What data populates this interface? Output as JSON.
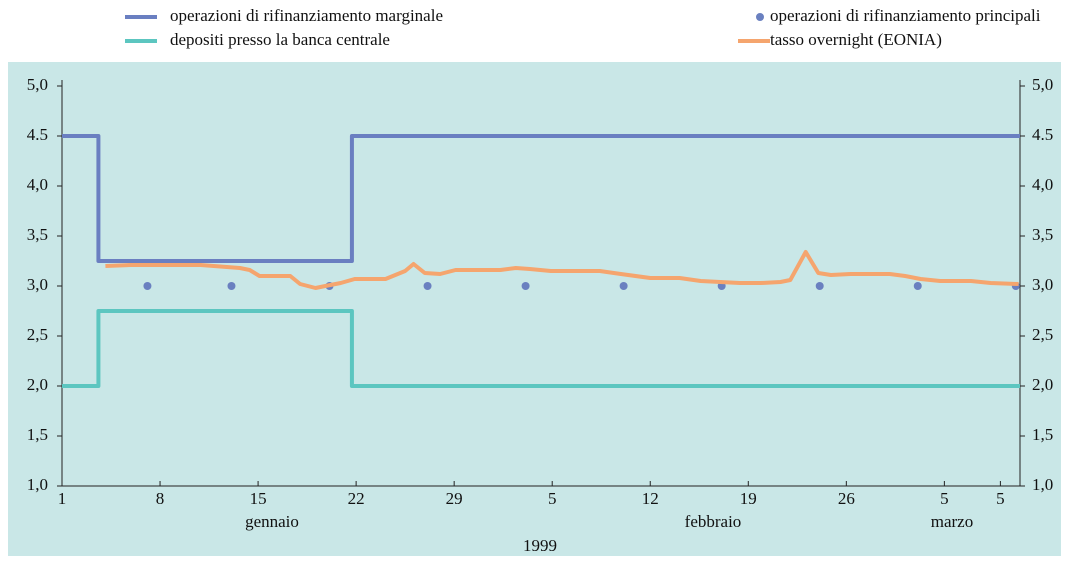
{
  "chart_data": {
    "type": "line",
    "xlim": [
      0,
      68.4
    ],
    "xticks": [
      {
        "value": 0,
        "label": "1"
      },
      {
        "value": 7,
        "label": "8"
      },
      {
        "value": 14,
        "label": "15"
      },
      {
        "value": 21,
        "label": "22"
      },
      {
        "value": 28,
        "label": "29"
      },
      {
        "value": 35,
        "label": "5"
      },
      {
        "value": 42,
        "label": "12"
      },
      {
        "value": 49,
        "label": "19"
      },
      {
        "value": 56,
        "label": "26"
      },
      {
        "value": 63,
        "label": "5"
      },
      {
        "value": 67,
        "label": "5"
      }
    ],
    "months": [
      "gennaio",
      "febbraio",
      "marzo"
    ],
    "year": "1999",
    "ylim": [
      1,
      5
    ],
    "yticks": [
      {
        "value": 1,
        "label": "1,0"
      },
      {
        "value": 1.5,
        "label": "1,5"
      },
      {
        "value": 2,
        "label": "2,0"
      },
      {
        "value": 2.5,
        "label": "2,5"
      },
      {
        "value": 3,
        "label": "3,0"
      },
      {
        "value": 3.5,
        "label": "3,5"
      },
      {
        "value": 4,
        "label": "4,0"
      },
      {
        "value": 4.5,
        "label": "4.5"
      },
      {
        "value": 5,
        "label": "5,0"
      }
    ],
    "series": [
      {
        "name": "operazioni di rifinanziamento marginale",
        "color": "#6a7fc1",
        "type": "line",
        "x": [
          0,
          2.6,
          2.6,
          20.7,
          20.7,
          68.4
        ],
        "values": [
          4.5,
          4.5,
          3.25,
          3.25,
          4.5,
          4.5
        ]
      },
      {
        "name": "operazioni di rifinanziamento principali",
        "color": "#6a80c0",
        "type": "scatter",
        "x": [
          6.1,
          12.1,
          19.1,
          26.1,
          33.1,
          40.1,
          47.1,
          54.1,
          61.1,
          68.1
        ],
        "values": [
          3,
          3,
          3,
          3,
          3,
          3,
          3,
          3,
          3,
          3
        ]
      },
      {
        "name": "depositi presso la banca centrale",
        "color": "#5cc6c0",
        "type": "line",
        "x": [
          0,
          2.6,
          2.6,
          20.7,
          20.7,
          68.4
        ],
        "values": [
          2,
          2,
          2.75,
          2.75,
          2,
          2
        ]
      },
      {
        "name": "tasso overnight (EONIA)",
        "color": "#f5a56e",
        "type": "line",
        "x": [
          3.1,
          4.9,
          7,
          9.9,
          12.7,
          13.4,
          14.1,
          16.3,
          17,
          18.1,
          18.8,
          19.9,
          20.9,
          23.1,
          24.5,
          25.1,
          25.9,
          27,
          28.1,
          31.3,
          32.4,
          33.4,
          34.9,
          38.4,
          39.9,
          42,
          44.1,
          45.6,
          48.4,
          49.9,
          51.3,
          52,
          53.1,
          54,
          54.9,
          56.3,
          59.1,
          60.2,
          61.3,
          62.7,
          64.9,
          66.3,
          68.3
        ],
        "values": [
          3.2,
          3.21,
          3.21,
          3.21,
          3.18,
          3.16,
          3.1,
          3.1,
          3.02,
          2.98,
          3.0,
          3.03,
          3.07,
          3.07,
          3.15,
          3.22,
          3.13,
          3.12,
          3.16,
          3.16,
          3.18,
          3.17,
          3.15,
          3.15,
          3.12,
          3.08,
          3.08,
          3.05,
          3.03,
          3.03,
          3.04,
          3.06,
          3.34,
          3.13,
          3.11,
          3.12,
          3.12,
          3.1,
          3.07,
          3.05,
          3.05,
          3.03,
          3.02
        ]
      }
    ]
  }
}
